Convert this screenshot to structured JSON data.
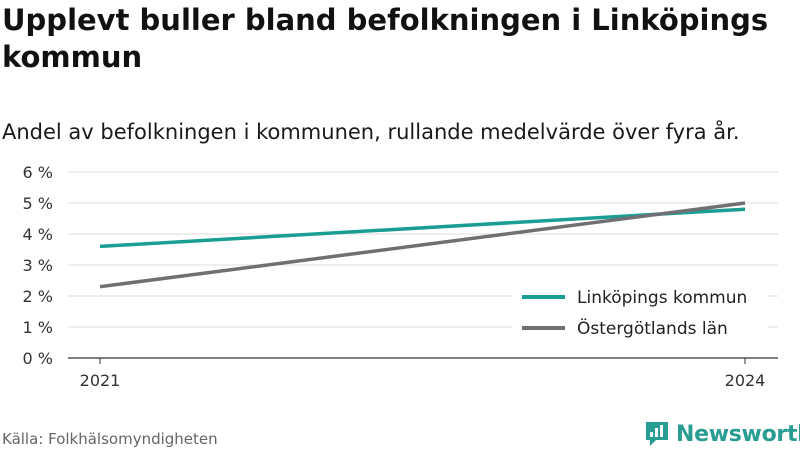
{
  "title": "Upplevt buller bland befolkningen i Linköpings kommun",
  "subtitle": "Andel av befolkningen i kommunen, rullande medelvärde över fyra år.",
  "source": "Källa: Folkhälsomyndigheten",
  "brand": {
    "name": "Newsworthy",
    "icon": "bar-chart-logo-icon",
    "color": "#2a9d93"
  },
  "chart_data": {
    "type": "line",
    "x": [
      2021,
      2024
    ],
    "xticks": [
      "2021",
      "2024"
    ],
    "ylim": [
      0,
      6
    ],
    "yticks": [
      "0 %",
      "1 %",
      "2 %",
      "3 %",
      "4 %",
      "5 %",
      "6 %"
    ],
    "grid": true,
    "legend": "bottom-right",
    "series": [
      {
        "name": "Linköpings kommun",
        "values": [
          3.6,
          4.8
        ],
        "color": "#1a9e93"
      },
      {
        "name": "Östergötlands län",
        "values": [
          2.3,
          5.0
        ],
        "color": "#706f73"
      }
    ]
  }
}
